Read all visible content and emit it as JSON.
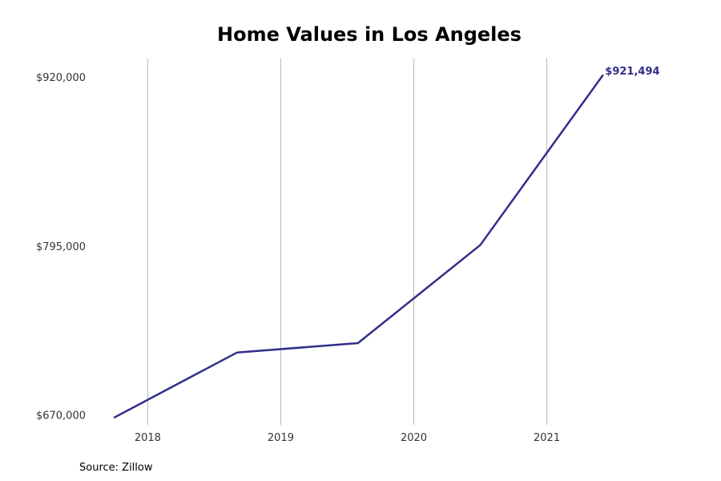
{
  "chart_data": {
    "type": "line",
    "title": "Home Values in Los Angeles",
    "xlabel": "",
    "ylabel": "",
    "source": "Source: Zillow",
    "x": [
      2017.75,
      2018.67,
      2019.58,
      2020.5,
      2021.42
    ],
    "xlim": [
      2017.6,
      2021.9
    ],
    "x_ticks": [
      2018,
      2019,
      2020,
      2021
    ],
    "x_tick_labels": [
      "2018",
      "2019",
      "2020",
      "2021"
    ],
    "ylim": [
      663000,
      934000
    ],
    "y_ticks": [
      670000,
      795000,
      920000
    ],
    "y_tick_labels": [
      "$670,000",
      "$795,000",
      "$920,000"
    ],
    "grid": "vertical",
    "series": [
      {
        "name": "Los Angeles",
        "values": [
          668500,
          716500,
          723500,
          796000,
          921494
        ],
        "end_label": "$921,494"
      }
    ],
    "colors": {
      "line": "#312e8a",
      "grid": "#bbbbbb"
    }
  }
}
